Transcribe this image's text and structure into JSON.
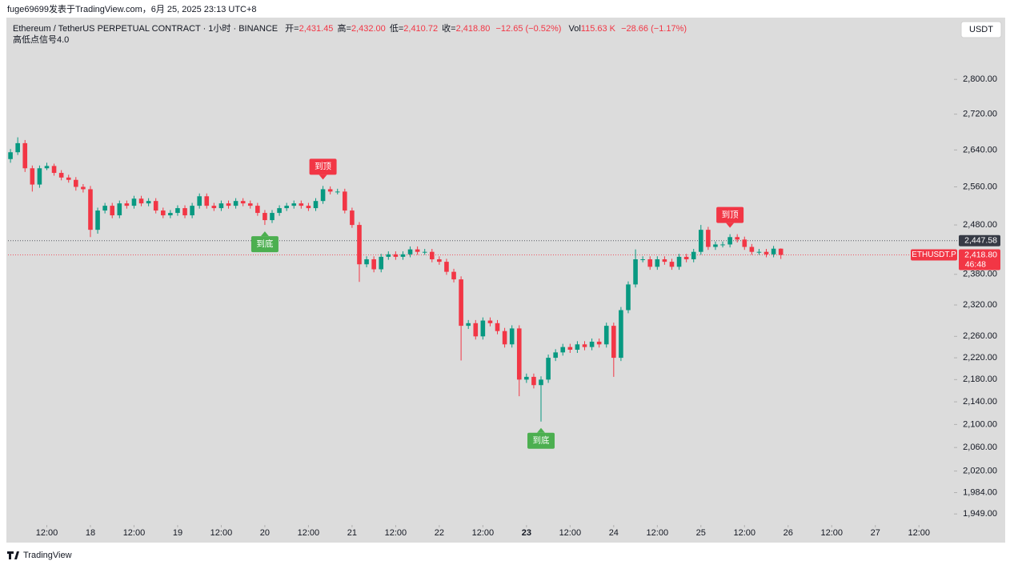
{
  "chart_data": {
    "type": "candlestick",
    "attribution": "fuge69699发表于TradingView.com，6月 25, 2025 23:13 UTC+8",
    "title": "Ethereum / TetherUS PERPETUAL CONTRACT · 1小时 · BINANCE",
    "ohlc_header": [
      {
        "label": "开=",
        "value": "2,431.45"
      },
      {
        "label": "高=",
        "value": "2,432.00"
      },
      {
        "label": "低=",
        "value": "2,410.72"
      },
      {
        "label": "收=",
        "value": "2,418.80"
      }
    ],
    "change": "−12.65 (−0.52%)",
    "volume": {
      "label": "Vol",
      "value": "115.63 K",
      "change": "−28.66 (−1.17%)"
    },
    "indicator": "高低点信号4.0",
    "currency": "USDT",
    "footer": "TradingView",
    "up_color": "#089981",
    "down_color": "#f23645",
    "log_scale": true,
    "ylim": [
      1903,
      2948
    ],
    "yticks": [
      {
        "value": 2800,
        "label": "2,800.00"
      },
      {
        "value": 2720,
        "label": "2,720.00"
      },
      {
        "value": 2640,
        "label": "2,640.00"
      },
      {
        "value": 2560,
        "label": "2,560.00"
      },
      {
        "value": 2480,
        "label": "2,480.00"
      },
      {
        "value": 2380,
        "label": "2,380.00"
      },
      {
        "value": 2320,
        "label": "2,320.00"
      },
      {
        "value": 2260,
        "label": "2,260.00"
      },
      {
        "value": 2220,
        "label": "2,220.00"
      },
      {
        "value": 2180,
        "label": "2,180.00"
      },
      {
        "value": 2140,
        "label": "2,140.00"
      },
      {
        "value": 2100,
        "label": "2,100.00"
      },
      {
        "value": 2060,
        "label": "2,060.00"
      },
      {
        "value": 2020,
        "label": "2,020.00"
      },
      {
        "value": 1984,
        "label": "1,984.00"
      },
      {
        "value": 1949,
        "label": "1,949.00"
      }
    ],
    "xlim": [
      -0.34,
      129.6
    ],
    "xticks": [
      {
        "value": 5,
        "label": "12:00"
      },
      {
        "value": 11,
        "label": "18"
      },
      {
        "value": 17,
        "label": "12:00"
      },
      {
        "value": 23,
        "label": "19"
      },
      {
        "value": 29,
        "label": "12:00"
      },
      {
        "value": 35,
        "label": "20"
      },
      {
        "value": 41,
        "label": "12:00"
      },
      {
        "value": 47,
        "label": "21"
      },
      {
        "value": 53,
        "label": "12:00"
      },
      {
        "value": 59,
        "label": "22"
      },
      {
        "value": 65,
        "label": "12:00"
      },
      {
        "value": 71,
        "label": "23"
      },
      {
        "value": 77,
        "label": "12:00"
      },
      {
        "value": 83,
        "label": "24"
      },
      {
        "value": 89,
        "label": "12:00"
      },
      {
        "value": 95,
        "label": "25"
      },
      {
        "value": 101,
        "label": "12:00"
      },
      {
        "value": 107,
        "label": "26"
      },
      {
        "value": 113,
        "label": "12:00"
      },
      {
        "value": 119,
        "label": "27"
      },
      {
        "value": 125,
        "label": "12:00"
      }
    ],
    "candles": {
      "open": [
        2620,
        2635,
        2655,
        2600,
        2565,
        2600,
        2605,
        2590,
        2580,
        2575,
        2560,
        2555,
        2470,
        2510,
        2520,
        2500,
        2525,
        2520,
        2535,
        2525,
        2530,
        2510,
        2500,
        2505,
        2515,
        2500,
        2520,
        2540,
        2520,
        2515,
        2525,
        2520,
        2530,
        2525,
        2520,
        2505,
        2490,
        2505,
        2515,
        2520,
        2525,
        2520,
        2515,
        2530,
        2555,
        2550,
        2550,
        2510,
        2480,
        2400,
        2410,
        2390,
        2415,
        2420,
        2415,
        2420,
        2430,
        2425,
        2425,
        2410,
        2405,
        2385,
        2370,
        2280,
        2285,
        2260,
        2290,
        2285,
        2270,
        2245,
        2275,
        2180,
        2185,
        2170,
        2180,
        2220,
        2230,
        2240,
        2235,
        2245,
        2240,
        2250,
        2245,
        2280,
        2220,
        2310,
        2360,
        2410,
        2410,
        2395,
        2410,
        2405,
        2395,
        2415,
        2410,
        2425,
        2470,
        2435,
        2440,
        2440,
        2455,
        2450,
        2435,
        2425,
        2425,
        2420,
        2431.45
      ],
      "high": [
        2642,
        2668,
        2662,
        2606,
        2606,
        2612,
        2610,
        2596,
        2586,
        2581,
        2566,
        2562,
        2516,
        2526,
        2526,
        2531,
        2531,
        2541,
        2541,
        2536,
        2536,
        2516,
        2511,
        2521,
        2521,
        2526,
        2546,
        2546,
        2526,
        2531,
        2531,
        2536,
        2536,
        2531,
        2526,
        2511,
        2511,
        2521,
        2526,
        2531,
        2531,
        2526,
        2536,
        2562,
        2561,
        2556,
        2556,
        2516,
        2486,
        2416,
        2416,
        2421,
        2426,
        2426,
        2426,
        2436,
        2436,
        2431,
        2431,
        2416,
        2411,
        2391,
        2376,
        2291,
        2291,
        2296,
        2296,
        2291,
        2276,
        2281,
        2281,
        2191,
        2191,
        2186,
        2226,
        2236,
        2246,
        2246,
        2251,
        2251,
        2256,
        2256,
        2286,
        2286,
        2316,
        2366,
        2430,
        2416,
        2416,
        2416,
        2416,
        2411,
        2421,
        2421,
        2431,
        2480,
        2476,
        2446,
        2446,
        2461,
        2461,
        2456,
        2441,
        2431,
        2431,
        2437,
        2432
      ],
      "low": [
        2612,
        2629,
        2592,
        2550,
        2558,
        2596,
        2584,
        2574,
        2569,
        2552,
        2548,
        2455,
        2462,
        2504,
        2494,
        2494,
        2514,
        2514,
        2519,
        2519,
        2504,
        2494,
        2494,
        2499,
        2494,
        2494,
        2514,
        2514,
        2509,
        2509,
        2514,
        2514,
        2519,
        2514,
        2499,
        2480,
        2484,
        2499,
        2509,
        2514,
        2514,
        2509,
        2509,
        2524,
        2544,
        2544,
        2504,
        2474,
        2365,
        2394,
        2384,
        2384,
        2409,
        2409,
        2409,
        2414,
        2419,
        2419,
        2404,
        2399,
        2379,
        2364,
        2215,
        2274,
        2254,
        2254,
        2279,
        2264,
        2239,
        2239,
        2150,
        2174,
        2164,
        2105,
        2174,
        2214,
        2224,
        2229,
        2229,
        2234,
        2234,
        2239,
        2239,
        2185,
        2214,
        2304,
        2354,
        2404,
        2389,
        2389,
        2399,
        2389,
        2389,
        2404,
        2404,
        2419,
        2429,
        2429,
        2434,
        2434,
        2444,
        2429,
        2419,
        2419,
        2414,
        2414,
        2410.72
      ],
      "close": [
        2635,
        2655,
        2600,
        2565,
        2600,
        2605,
        2590,
        2580,
        2575,
        2560,
        2555,
        2470,
        2510,
        2520,
        2500,
        2525,
        2520,
        2535,
        2525,
        2530,
        2510,
        2500,
        2505,
        2515,
        2500,
        2520,
        2540,
        2520,
        2515,
        2525,
        2520,
        2530,
        2525,
        2520,
        2505,
        2490,
        2505,
        2515,
        2520,
        2525,
        2520,
        2515,
        2530,
        2555,
        2550,
        2550,
        2510,
        2480,
        2400,
        2410,
        2390,
        2415,
        2420,
        2415,
        2420,
        2430,
        2425,
        2425,
        2410,
        2405,
        2385,
        2370,
        2280,
        2285,
        2260,
        2290,
        2285,
        2270,
        2245,
        2275,
        2180,
        2185,
        2170,
        2180,
        2220,
        2230,
        2240,
        2235,
        2245,
        2240,
        2250,
        2245,
        2280,
        2220,
        2310,
        2360,
        2410,
        2410,
        2395,
        2410,
        2405,
        2395,
        2415,
        2410,
        2425,
        2470,
        2435,
        2440,
        2440,
        2455,
        2450,
        2435,
        2425,
        2425,
        2420,
        2431.45,
        2418.8
      ]
    },
    "signals": [
      {
        "label": "到顶",
        "index": 43,
        "position": "above",
        "color": "#f23645"
      },
      {
        "label": "到底",
        "index": 35,
        "position": "below",
        "color": "#4caf50"
      },
      {
        "label": "到底",
        "index": 73,
        "position": "below",
        "color": "#4caf50"
      },
      {
        "label": "到顶",
        "index": 99,
        "position": "above",
        "color": "#f23645"
      }
    ],
    "price_lines": [
      {
        "value": 2447.58,
        "label": "2,447.58",
        "color": "#363a45"
      },
      {
        "value": 2418.8,
        "label": "2,418.80",
        "symbol": "ETHUSDT.P",
        "countdown": "46:48",
        "color": "#f23645"
      }
    ]
  }
}
